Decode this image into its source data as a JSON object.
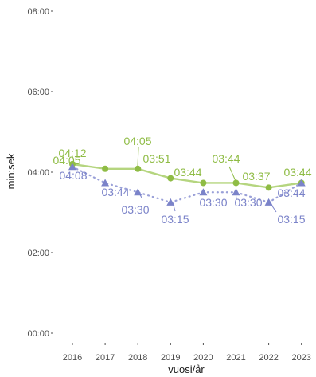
{
  "chart_data": {
    "type": "line",
    "xlabel": "vuosi/år",
    "ylabel": "min:sek",
    "x": [
      "2016",
      "2017",
      "2018",
      "2019",
      "2020",
      "2021",
      "2022",
      "2023"
    ],
    "y_ticks": [
      "00:00",
      "02:00",
      "04:00",
      "06:00",
      "08:00"
    ],
    "ylim": [
      "00:00",
      "08:00"
    ],
    "grid": false,
    "series": [
      {
        "marker": "circle",
        "line_style": "solid",
        "color": "#8fbc45",
        "line_color": "#b5d57f",
        "values": [
          "04:12",
          "04:05",
          "04:05",
          "03:51",
          "03:44",
          "03:44",
          "03:37",
          "03:44"
        ]
      },
      {
        "marker": "triangle",
        "line_style": "dotted",
        "color": "#7b83c9",
        "line_color": "#9aa0d8",
        "values": [
          "04:08",
          "03:44",
          "03:30",
          "03:15",
          "03:30",
          "03:30",
          "03:15",
          "03:44"
        ]
      }
    ]
  }
}
